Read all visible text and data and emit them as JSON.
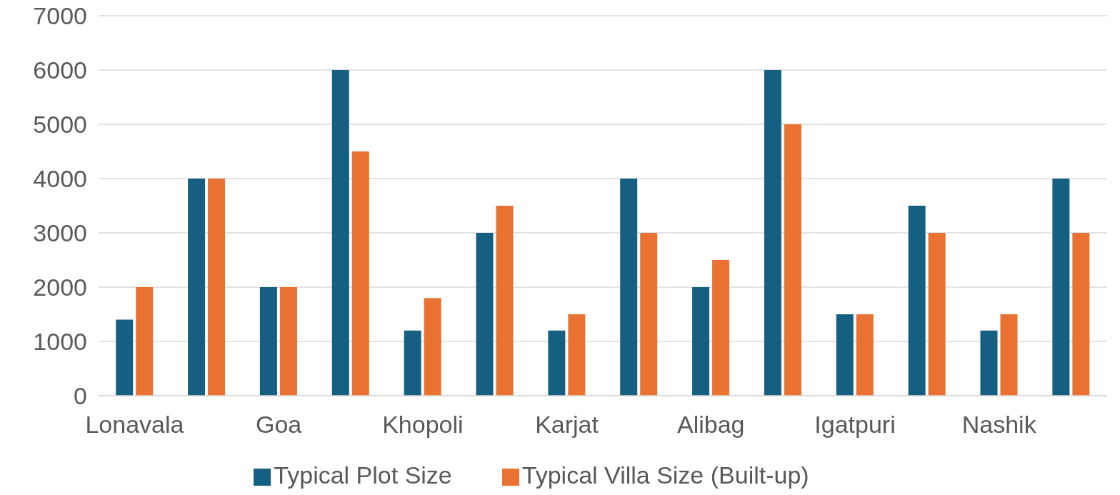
{
  "chart_data": {
    "type": "bar",
    "categories": [
      "Lonavala",
      null,
      "Goa",
      null,
      "Khopoli",
      null,
      "Karjat",
      null,
      "Alibag",
      null,
      "Igatpuri",
      null,
      "Nashik",
      null
    ],
    "series": [
      {
        "name": "Typical Plot Size",
        "color": "#156082",
        "values": [
          1400,
          4000,
          2000,
          6000,
          1200,
          3000,
          1200,
          4000,
          2000,
          6000,
          1500,
          3500,
          1200,
          4000
        ]
      },
      {
        "name": "Typical Villa Size (Built-up)",
        "color": "#e97132",
        "values": [
          2000,
          4000,
          2000,
          4500,
          1800,
          3500,
          1500,
          3000,
          2500,
          5000,
          1500,
          3000,
          1500,
          3000
        ]
      }
    ],
    "ylim": [
      0,
      7000
    ],
    "yticks": [
      0,
      1000,
      2000,
      3000,
      4000,
      5000,
      6000,
      7000
    ],
    "grid": "y",
    "legend": "bottom"
  }
}
